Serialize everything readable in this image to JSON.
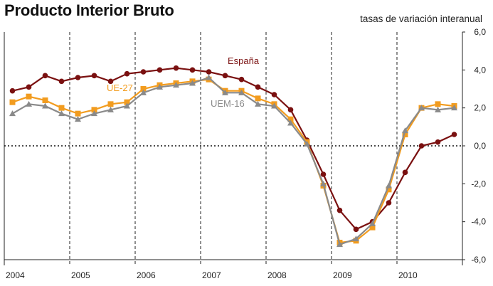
{
  "chart_data": {
    "type": "line",
    "title": "Producto Interior Bruto",
    "subtitle": "tasas de variación interanual",
    "x": [
      "2004T1",
      "2004T2",
      "2004T3",
      "2004T4",
      "2005T1",
      "2005T2",
      "2005T3",
      "2005T4",
      "2006T1",
      "2006T2",
      "2006T3",
      "2006T4",
      "2007T1",
      "2007T2",
      "2007T3",
      "2007T4",
      "2008T1",
      "2008T2",
      "2008T3",
      "2008T4",
      "2009T1",
      "2009T2",
      "2009T3",
      "2009T4",
      "2010T1",
      "2010T2",
      "2010T3",
      "2010T4"
    ],
    "x_tick_labels": [
      "2004",
      "2005",
      "2006",
      "2007",
      "2008",
      "2009",
      "2010"
    ],
    "y_tick_labels": [
      "6,0",
      "4,0",
      "2,0",
      "0,0",
      "-2,0",
      "-4,0",
      "-6,0"
    ],
    "ylim": [
      -6,
      6
    ],
    "y_axis_side": "right",
    "grid": "vertical dashed at year boundaries",
    "zero_line": "dotted",
    "series": [
      {
        "name": "España",
        "color": "#7a1010",
        "marker": "circle",
        "values": [
          2.9,
          3.1,
          3.7,
          3.4,
          3.6,
          3.7,
          3.4,
          3.8,
          3.9,
          4.0,
          4.1,
          4.0,
          3.9,
          3.7,
          3.5,
          3.1,
          2.7,
          1.9,
          0.3,
          -1.5,
          -3.4,
          -4.4,
          -4.0,
          -3.0,
          -1.4,
          0.0,
          0.2,
          0.6
        ]
      },
      {
        "name": "UE-27",
        "color": "#f29c1f",
        "marker": "square",
        "values": [
          2.3,
          2.6,
          2.4,
          2.0,
          1.7,
          1.9,
          2.2,
          2.3,
          3.0,
          3.2,
          3.3,
          3.4,
          3.5,
          2.9,
          2.9,
          2.5,
          2.2,
          1.4,
          0.2,
          -2.1,
          -5.1,
          -5.0,
          -4.3,
          -2.3,
          0.6,
          2.0,
          2.2,
          2.1
        ]
      },
      {
        "name": "UEM-16",
        "color": "#8a8a8a",
        "marker": "triangle",
        "values": [
          1.7,
          2.2,
          2.1,
          1.7,
          1.4,
          1.7,
          1.9,
          2.1,
          2.8,
          3.1,
          3.2,
          3.3,
          3.6,
          2.8,
          2.8,
          2.2,
          2.1,
          1.2,
          0.1,
          -2.0,
          -5.2,
          -4.9,
          -4.1,
          -2.1,
          0.8,
          2.0,
          1.9,
          2.0
        ]
      }
    ]
  }
}
